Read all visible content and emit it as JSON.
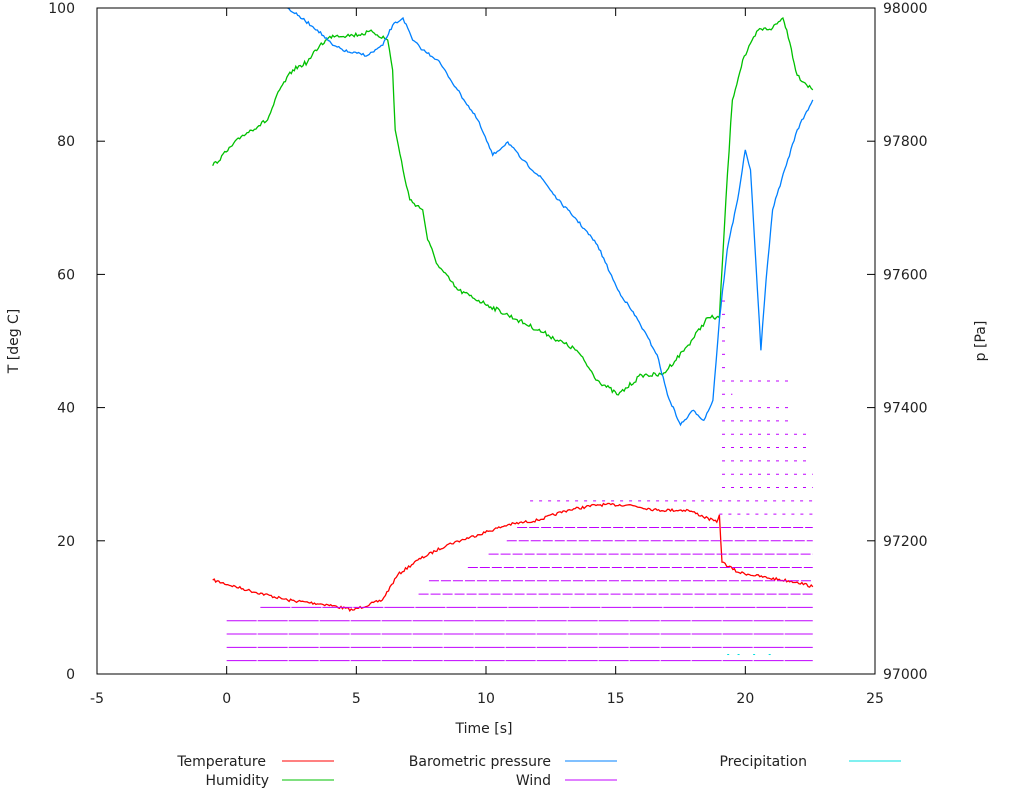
{
  "chart_data": {
    "type": "line",
    "xlabel": "Time [s]",
    "ylabel": "T [deg C]",
    "y2label": "p [Pa]",
    "xlim": [
      -5,
      25
    ],
    "ylim": [
      0,
      100
    ],
    "y2lim": [
      97000,
      98000
    ],
    "xticks": [
      "-5",
      "0",
      "5",
      "10",
      "15",
      "20",
      "25"
    ],
    "yticks": [
      "0",
      "20",
      "40",
      "60",
      "80",
      "100"
    ],
    "y2ticks": [
      "97000",
      "97200",
      "97400",
      "97600",
      "97800",
      "98000"
    ],
    "grid": false,
    "legend_position": "bottom",
    "series": [
      {
        "name": "Temperature",
        "color": "#ff0000",
        "axis": "left",
        "x": [
          -0.54,
          0.8,
          2.35,
          3.9,
          4.86,
          6.0,
          6.6,
          7.37,
          8.5,
          9.68,
          10.84,
          12.0,
          13.15,
          14.3,
          15.5,
          16.6,
          17.8,
          18.9,
          19.0,
          19.1,
          19.7,
          20.9,
          22.0,
          22.6
        ],
        "y": [
          14.1,
          12.6,
          11.1,
          10.4,
          9.6,
          11.1,
          14.9,
          17.1,
          19.4,
          20.9,
          22.4,
          23.1,
          24.6,
          25.4,
          25.4,
          24.6,
          24.6,
          22.8,
          23.9,
          16.8,
          15.3,
          14.4,
          13.8,
          13.1
        ]
      },
      {
        "name": "Humidity",
        "color": "#00c000",
        "axis": "left",
        "x": [
          -0.54,
          0.62,
          1.58,
          2.04,
          2.55,
          3.12,
          3.59,
          4.09,
          4.86,
          5.63,
          6.21,
          6.4,
          6.5,
          6.8,
          7.06,
          7.56,
          7.75,
          8.14,
          8.9,
          10.07,
          11.2,
          12.4,
          13.5,
          14.3,
          15.1,
          16.0,
          16.8,
          17.8,
          18.55,
          19.0,
          19.25,
          19.5,
          19.9,
          20.5,
          21.05,
          21.45,
          21.6,
          22.0,
          22.6
        ],
        "y": [
          76.3,
          80.9,
          83.2,
          87.7,
          90.7,
          91.9,
          94.4,
          95.9,
          95.9,
          96.4,
          95.2,
          90.7,
          81.7,
          75.7,
          71.2,
          69.7,
          65.2,
          61.4,
          57.7,
          55.4,
          53.2,
          50.9,
          48.6,
          44.1,
          41.9,
          44.9,
          44.9,
          49.4,
          53.5,
          53.5,
          71.2,
          86.2,
          92.2,
          96.7,
          97.0,
          98.5,
          96.7,
          89.9,
          87.7
        ]
      },
      {
        "name": "Barometric pressure",
        "color": "#0080ff",
        "axis": "right",
        "x": [
          2.35,
          2.74,
          3.5,
          4.09,
          4.67,
          5.44,
          6.02,
          6.4,
          6.8,
          7.17,
          7.56,
          8.14,
          8.9,
          9.68,
          10.26,
          10.84,
          11.4,
          12.2,
          12.77,
          13.5,
          14.3,
          15.08,
          15.85,
          16.6,
          17.0,
          17.5,
          18.0,
          18.4,
          18.75,
          19.0,
          19.3,
          19.7,
          20.0,
          20.2,
          20.4,
          20.6,
          20.8,
          21.05,
          21.4,
          22.0,
          22.6
        ],
        "y": [
          98000,
          97989,
          97967,
          97944,
          97934,
          97929,
          97944,
          97974,
          97985,
          97952,
          97937,
          97922,
          97877,
          97832,
          97779,
          97799,
          97772,
          97742,
          97712,
          97682,
          97644,
          97577,
          97532,
          97479,
          97419,
          97374,
          97396,
          97381,
          97411,
          97532,
          97637,
          97712,
          97787,
          97757,
          97622,
          97486,
          97592,
          97697,
          97742,
          97817,
          97862
        ]
      },
      {
        "name": "Wind",
        "color": "#c000ff",
        "axis": "left",
        "levels": [
          {
            "value": 2,
            "from": 0,
            "to": 22.6
          },
          {
            "value": 4,
            "from": 0,
            "to": 22.6
          },
          {
            "value": 6,
            "from": 0,
            "to": 22.6
          },
          {
            "value": 8,
            "from": 0,
            "to": 22.6
          },
          {
            "value": 10,
            "from": 1.3,
            "to": 22.6
          },
          {
            "value": 12,
            "from": 7.4,
            "to": 22.6
          },
          {
            "value": 14,
            "from": 7.8,
            "to": 22.6
          },
          {
            "value": 16,
            "from": 9.3,
            "to": 22.6
          },
          {
            "value": 18,
            "from": 10.1,
            "to": 22.6
          },
          {
            "value": 20,
            "from": 10.8,
            "to": 22.6
          },
          {
            "value": 22,
            "from": 11.2,
            "to": 22.6
          },
          {
            "value": 24,
            "from": 19.0,
            "to": 22.6
          },
          {
            "value": 26,
            "from": 11.7,
            "to": 22.6
          },
          {
            "value": 28,
            "from": 19.1,
            "to": 22.6
          },
          {
            "value": 30,
            "from": 19.1,
            "to": 22.6
          },
          {
            "value": 32,
            "from": 19.1,
            "to": 22.4
          },
          {
            "value": 34,
            "from": 19.1,
            "to": 22.4
          },
          {
            "value": 36,
            "from": 19.1,
            "to": 22.4
          },
          {
            "value": 38,
            "from": 19.1,
            "to": 21.8
          },
          {
            "value": 40,
            "from": 19.1,
            "to": 21.8
          },
          {
            "value": 42,
            "from": 19.1,
            "to": 19.5
          },
          {
            "value": 44,
            "from": 19.1,
            "to": 21.7
          },
          {
            "value": 46,
            "from": 19.1,
            "to": 19.4
          },
          {
            "value": 48,
            "from": 19.1,
            "to": 19.4
          },
          {
            "value": 50,
            "from": 19.1,
            "to": 19.4
          },
          {
            "value": 52,
            "from": 19.1,
            "to": 19.4
          },
          {
            "value": 54,
            "from": 19.1,
            "to": 19.4
          },
          {
            "value": 56,
            "from": 19.1,
            "to": 19.4
          }
        ]
      },
      {
        "name": "Precipitation",
        "color": "#00e0e0",
        "axis": "left",
        "x": [
          19.3,
          19.7,
          20.3,
          20.9
        ],
        "y": [
          3,
          3,
          3,
          3
        ]
      }
    ]
  }
}
